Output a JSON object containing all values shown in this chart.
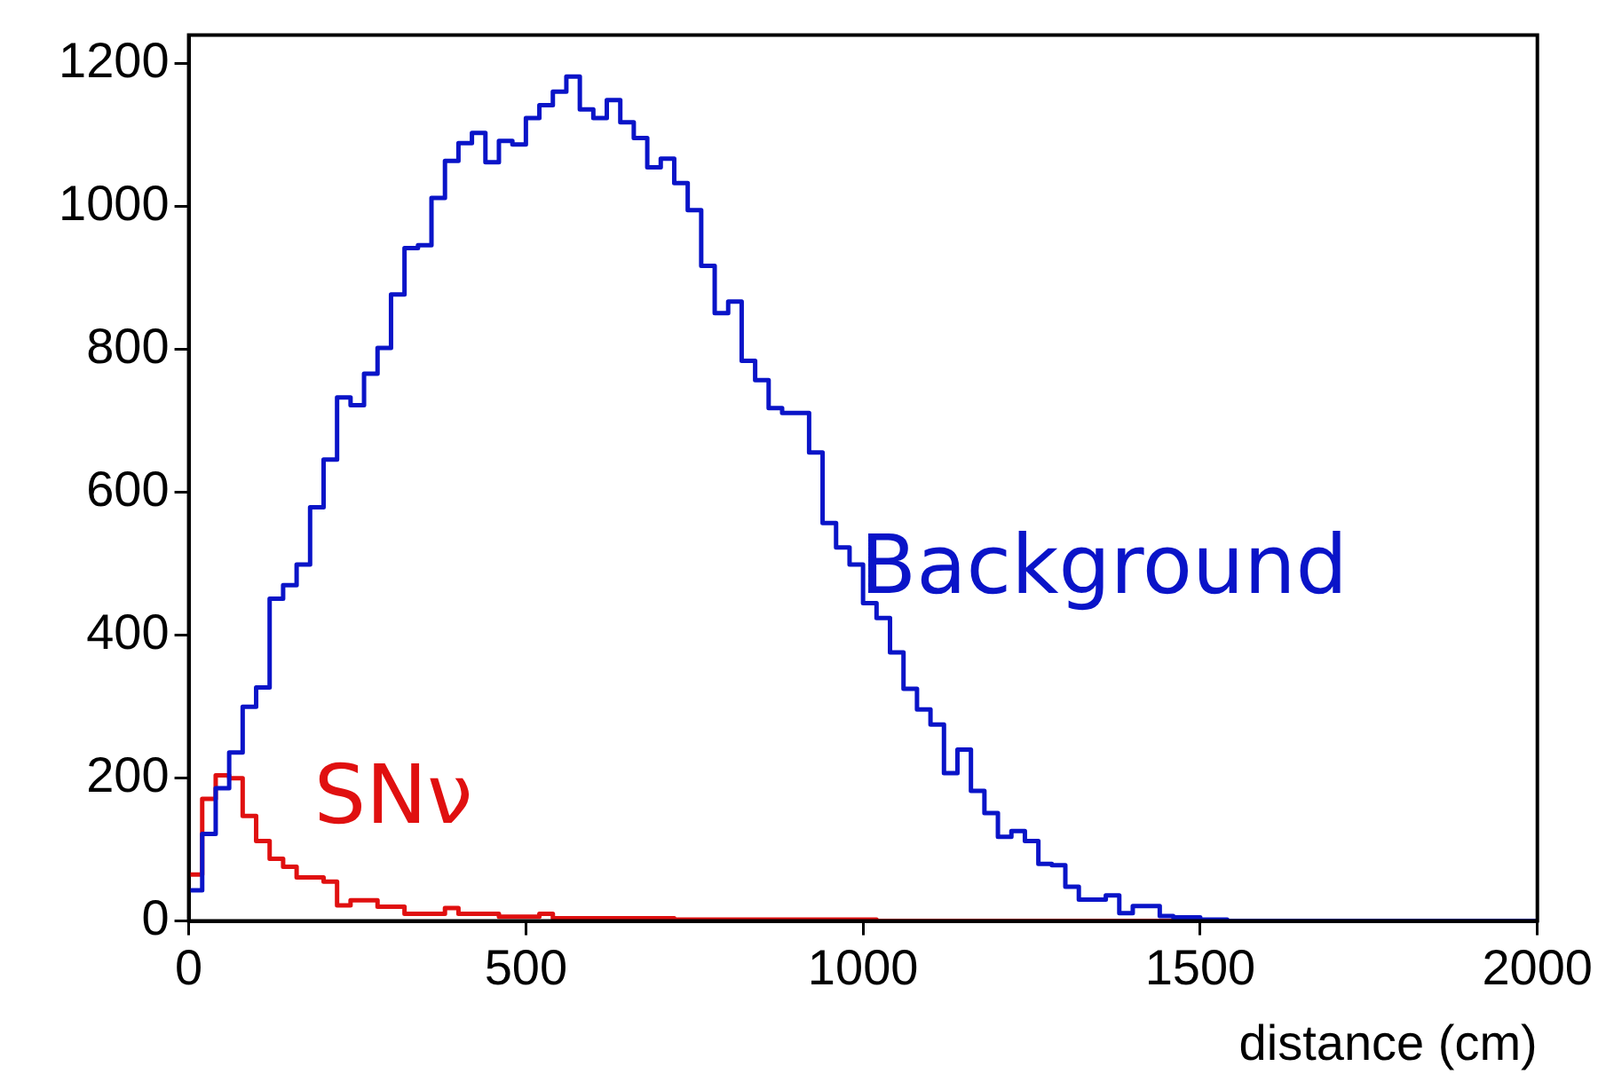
{
  "chart_data": {
    "type": "histogram",
    "xlabel": "distance (cm)",
    "bins": [
      0,
      20,
      40,
      60,
      80,
      100,
      120,
      140,
      160,
      180,
      200,
      220,
      240,
      260,
      280,
      300,
      320,
      340,
      360,
      380,
      400,
      420,
      440,
      460,
      480,
      500,
      520,
      540,
      560,
      580,
      600,
      620,
      640,
      660,
      680,
      700,
      720,
      740,
      760,
      780,
      800,
      820,
      840,
      860,
      880,
      900,
      920,
      940,
      960,
      980,
      1000,
      1020,
      1040,
      1060,
      1080,
      1100,
      1120,
      1140,
      1160,
      1180,
      1200,
      1220,
      1240,
      1260,
      1280,
      1300,
      1320,
      1340,
      1360,
      1380,
      1400,
      1420,
      1440,
      1460,
      1480,
      1500,
      1520,
      1540,
      1560,
      1580,
      1600,
      1620,
      1640,
      1660,
      1680,
      1700,
      1720,
      1740,
      1760,
      1780,
      1800,
      1820,
      1840,
      1860,
      1880,
      1900,
      1920,
      1940,
      1960,
      1980,
      2000
    ],
    "series": [
      {
        "name": "Background",
        "color": "#0a14c8",
        "values": [
          43,
          122,
          186,
          236,
          300,
          327,
          451,
          470,
          499,
          579,
          646,
          733,
          722,
          766,
          802,
          877,
          942,
          946,
          1012,
          1064,
          1089,
          1103,
          1062,
          1092,
          1087,
          1124,
          1142,
          1161,
          1182,
          1136,
          1124,
          1149,
          1118,
          1096,
          1055,
          1067,
          1033,
          995,
          917,
          851,
          867,
          784,
          757,
          718,
          711,
          711,
          656,
          557,
          523,
          499,
          445,
          424,
          376,
          325,
          296,
          275,
          207,
          240,
          182,
          151,
          118,
          126,
          112,
          80,
          78,
          48,
          30,
          30,
          36,
          11,
          21,
          21,
          7,
          5,
          5,
          2,
          2,
          0,
          0,
          0,
          0,
          0,
          0,
          0,
          0,
          0,
          0,
          0,
          0,
          0,
          0,
          0,
          0,
          0,
          0,
          0,
          0,
          0,
          0,
          0
        ]
      },
      {
        "name": "SNν",
        "color": "#e01010",
        "values": [
          65,
          171,
          204,
          200,
          147,
          112,
          87,
          76,
          61,
          61,
          55,
          22,
          29,
          29,
          20,
          20,
          10,
          10,
          10,
          18,
          10,
          10,
          10,
          6,
          6,
          6,
          10,
          4,
          4,
          4,
          4,
          4,
          4,
          4,
          4,
          4,
          2,
          2,
          2,
          2,
          2,
          2,
          2,
          2,
          2,
          2,
          2,
          2,
          2,
          2,
          2,
          0,
          0,
          0,
          0,
          0,
          0,
          0,
          0,
          0,
          0,
          0,
          0,
          0,
          0,
          0,
          0,
          0,
          0,
          0,
          0,
          0,
          0,
          0,
          0,
          0,
          0,
          0,
          0,
          0,
          0,
          0,
          0,
          0,
          0,
          0,
          0,
          0,
          0,
          0,
          0,
          0,
          0,
          0,
          0,
          0,
          0,
          0,
          0,
          0
        ]
      }
    ],
    "xlim": [
      0,
      2000
    ],
    "xticks": [
      0,
      500,
      1000,
      1500,
      2000
    ],
    "ylim": [
      0,
      1240
    ],
    "yticks": [
      0,
      200,
      400,
      600,
      800,
      1000,
      1200
    ]
  }
}
